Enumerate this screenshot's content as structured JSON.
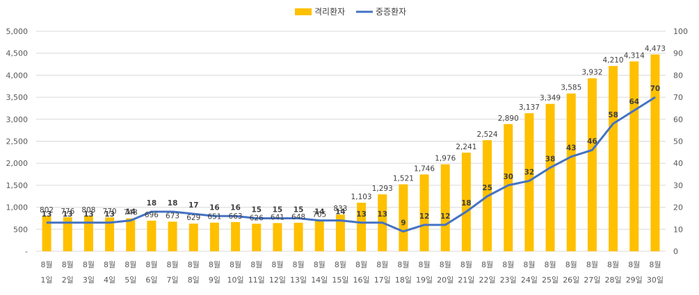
{
  "chart_data": {
    "type": "bar",
    "categories": [
      "8월 1일",
      "8월 2일",
      "8월 3일",
      "8월 4일",
      "8월 5일",
      "8월 6일",
      "8월 7일",
      "8월 8일",
      "8월 9일",
      "8월 10일",
      "8월 11일",
      "8월 12일",
      "8월 13일",
      "8월 14일",
      "8월 15일",
      "8월 16일",
      "8월 17일",
      "8월 18일",
      "8월 19일",
      "8월 20일",
      "8월 21일",
      "8월 22일",
      "8월 23일",
      "8월 24일",
      "8월 25일",
      "8월 26일",
      "8월 27일",
      "8월 28일",
      "8월 29일",
      "8월 30일"
    ],
    "category_lines": [
      [
        "8월",
        "1일"
      ],
      [
        "8월",
        "2일"
      ],
      [
        "8월",
        "3일"
      ],
      [
        "8월",
        "4일"
      ],
      [
        "8월",
        "5일"
      ],
      [
        "8월",
        "6일"
      ],
      [
        "8월",
        "7일"
      ],
      [
        "8월",
        "8일"
      ],
      [
        "8월",
        "9일"
      ],
      [
        "8월",
        "10일"
      ],
      [
        "8월",
        "11일"
      ],
      [
        "8월",
        "12일"
      ],
      [
        "8월",
        "13일"
      ],
      [
        "8월",
        "14일"
      ],
      [
        "8월",
        "15일"
      ],
      [
        "8월",
        "16일"
      ],
      [
        "8월",
        "17일"
      ],
      [
        "8월",
        "18일"
      ],
      [
        "8월",
        "19일"
      ],
      [
        "8월",
        "20일"
      ],
      [
        "8월",
        "21일"
      ],
      [
        "8월",
        "22일"
      ],
      [
        "8월",
        "23일"
      ],
      [
        "8월",
        "24일"
      ],
      [
        "8월",
        "25일"
      ],
      [
        "8월",
        "26일"
      ],
      [
        "8월",
        "27일"
      ],
      [
        "8월",
        "28일"
      ],
      [
        "8월",
        "29일"
      ],
      [
        "8월",
        "30일"
      ]
    ],
    "series": [
      {
        "name": "격리환자",
        "type": "bar",
        "axis": "left",
        "color": "#FFC000",
        "values": [
          802,
          776,
          808,
          770,
          748,
          696,
          673,
          629,
          651,
          663,
          626,
          641,
          648,
          705,
          833,
          1103,
          1293,
          1521,
          1746,
          1976,
          2241,
          2524,
          2890,
          3137,
          3349,
          3585,
          3932,
          4210,
          4314,
          4473
        ],
        "labels": [
          "802",
          "776",
          "808",
          "770",
          "748",
          "696",
          "673",
          "629",
          "651",
          "663",
          "626",
          "641",
          "648",
          "705",
          "833",
          "1,103",
          "1,293",
          "1,521",
          "1,746",
          "1,976",
          "2,241",
          "2,524",
          "2,890",
          "3,137",
          "3,349",
          "3,585",
          "3,932",
          "4,210",
          "4,314",
          "4,473"
        ]
      },
      {
        "name": "중증환자",
        "type": "line",
        "axis": "right",
        "color": "#4472C4",
        "values": [
          13,
          13,
          13,
          13,
          14,
          18,
          18,
          17,
          16,
          16,
          15,
          15,
          15,
          14,
          14,
          13,
          13,
          9,
          12,
          12,
          18,
          25,
          30,
          32,
          38,
          43,
          46,
          58,
          64,
          70
        ],
        "labels": [
          "13",
          "13",
          "13",
          "13",
          "14",
          "18",
          "18",
          "17",
          "16",
          "16",
          "15",
          "15",
          "15",
          "14",
          "14",
          "13",
          "13",
          "9",
          "12",
          "12",
          "18",
          "25",
          "30",
          "32",
          "38",
          "43",
          "46",
          "58",
          "64",
          "70"
        ]
      }
    ],
    "y_left": {
      "min": 0,
      "max": 5000,
      "ticks": [
        0,
        500,
        1000,
        1500,
        2000,
        2500,
        3000,
        3500,
        4000,
        4500,
        5000
      ],
      "tick_labels": [
        "-",
        "500",
        "1,000",
        "1,500",
        "2,000",
        "2,500",
        "3,000",
        "3,500",
        "4,000",
        "4,500",
        "5,000"
      ]
    },
    "y_right": {
      "min": 0,
      "max": 100,
      "ticks": [
        0,
        10,
        20,
        30,
        40,
        50,
        60,
        70,
        80,
        90,
        100
      ],
      "tick_labels": [
        "0",
        "10",
        "20",
        "30",
        "40",
        "50",
        "60",
        "70",
        "80",
        "90",
        "100"
      ]
    },
    "grid": true,
    "legend_position": "top-center",
    "title": "",
    "xlabel": "",
    "ylabel": ""
  }
}
